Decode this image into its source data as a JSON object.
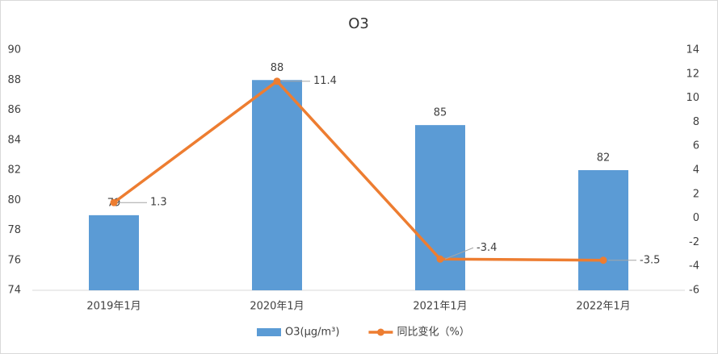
{
  "chart_data": {
    "type": "bar",
    "title": "O3",
    "categories": [
      "2019年1月",
      "2020年1月",
      "2021年1月",
      "2022年1月"
    ],
    "series": [
      {
        "name": "O3(μg/m³)",
        "type": "bar",
        "color": "#5b9bd5",
        "values": [
          79,
          88,
          85,
          82
        ]
      },
      {
        "name": "同比变化（%）",
        "type": "line",
        "axis": "y2",
        "color": "#ed7d31",
        "values": [
          1.3,
          11.4,
          -3.4,
          -3.5
        ]
      }
    ],
    "ylim": [
      74,
      90
    ],
    "yticks": [
      74,
      76,
      78,
      80,
      82,
      84,
      86,
      88,
      90
    ],
    "y2lim": [
      -6,
      14
    ],
    "y2ticks": [
      -6,
      -4,
      -2,
      0,
      2,
      4,
      6,
      8,
      10,
      12,
      14
    ],
    "grid": false,
    "legend": "bottom"
  }
}
